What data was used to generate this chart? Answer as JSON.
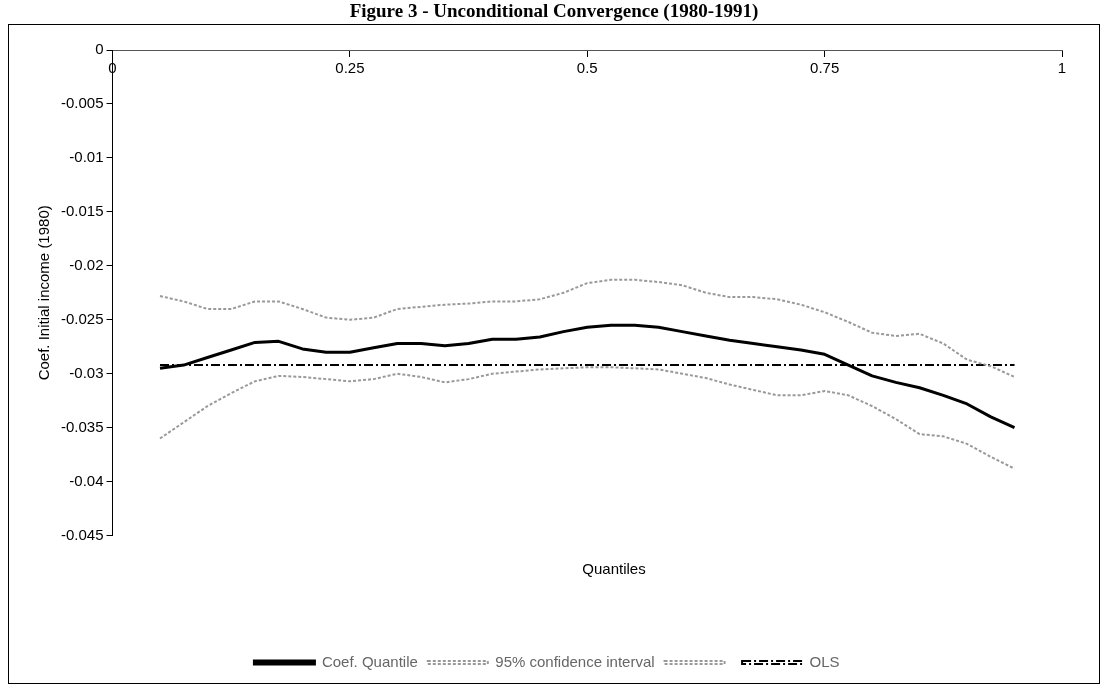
{
  "chart_data": {
    "type": "line",
    "title": "Figure 3 - Unconditional Convergence (1980-1991)",
    "xlabel": "Quantiles",
    "ylabel": "Coef. Initial income (1980)",
    "xlim": [
      0,
      1
    ],
    "xticks": [
      0,
      0.25,
      0.5,
      0.75,
      1
    ],
    "ylim": [
      -0.045,
      0
    ],
    "yticks": [
      0,
      -0.005,
      -0.01,
      -0.015,
      -0.02,
      -0.025,
      -0.03,
      -0.035,
      -0.04,
      -0.045
    ],
    "grid": false,
    "legend": "bottom",
    "marker": "none",
    "x": [
      0.05,
      0.075,
      0.1,
      0.125,
      0.15,
      0.175,
      0.2,
      0.225,
      0.25,
      0.275,
      0.3,
      0.325,
      0.35,
      0.375,
      0.4,
      0.425,
      0.45,
      0.475,
      0.5,
      0.525,
      0.55,
      0.575,
      0.6,
      0.625,
      0.65,
      0.675,
      0.7,
      0.725,
      0.75,
      0.775,
      0.8,
      0.825,
      0.85,
      0.875,
      0.9,
      0.925,
      0.95
    ],
    "series": [
      {
        "name": "Coef. Quantile",
        "color": "#000000",
        "line_style": "solid",
        "values": [
          -0.0295,
          -0.0292,
          -0.0285,
          -0.0278,
          -0.0271,
          -0.027,
          -0.0277,
          -0.028,
          -0.028,
          -0.0276,
          -0.0272,
          -0.0272,
          -0.0274,
          -0.0272,
          -0.0268,
          -0.0268,
          -0.0266,
          -0.0261,
          -0.0257,
          -0.0255,
          -0.0255,
          -0.0257,
          -0.0261,
          -0.0265,
          -0.0269,
          -0.0272,
          -0.0275,
          -0.0278,
          -0.0282,
          -0.0292,
          -0.0302,
          -0.0308,
          -0.0313,
          -0.032,
          -0.0328,
          -0.034,
          -0.035
        ]
      },
      {
        "name": "95% confidence interval",
        "color": "#999999",
        "line_style": "dotted",
        "values": [
          -0.0228,
          -0.0233,
          -0.024,
          -0.024,
          -0.0233,
          -0.0233,
          -0.024,
          -0.0248,
          -0.025,
          -0.0248,
          -0.024,
          -0.0238,
          -0.0236,
          -0.0235,
          -0.0233,
          -0.0233,
          -0.0231,
          -0.0225,
          -0.0216,
          -0.0213,
          -0.0213,
          -0.0215,
          -0.0218,
          -0.0225,
          -0.0229,
          -0.0229,
          -0.0231,
          -0.0236,
          -0.0243,
          -0.0252,
          -0.0262,
          -0.0265,
          -0.0263,
          -0.0272,
          -0.0287,
          -0.0293,
          -0.0303
        ]
      },
      {
        "color": "#999999",
        "line_style": "dotted",
        "values": [
          -0.036,
          -0.0345,
          -0.033,
          -0.0318,
          -0.0307,
          -0.0302,
          -0.0303,
          -0.0305,
          -0.0307,
          -0.0305,
          -0.03,
          -0.0303,
          -0.0308,
          -0.0305,
          -0.03,
          -0.0298,
          -0.0296,
          -0.0295,
          -0.0294,
          -0.0294,
          -0.0295,
          -0.0296,
          -0.03,
          -0.0304,
          -0.031,
          -0.0315,
          -0.032,
          -0.032,
          -0.0316,
          -0.032,
          -0.033,
          -0.0342,
          -0.0356,
          -0.0358,
          -0.0365,
          -0.0377,
          -0.0388
        ]
      },
      {
        "name": "OLS",
        "color": "#000000",
        "line_style": "dashed",
        "x": [
          0.05,
          0.95
        ],
        "values": [
          -0.0292,
          -0.0292
        ]
      }
    ]
  }
}
